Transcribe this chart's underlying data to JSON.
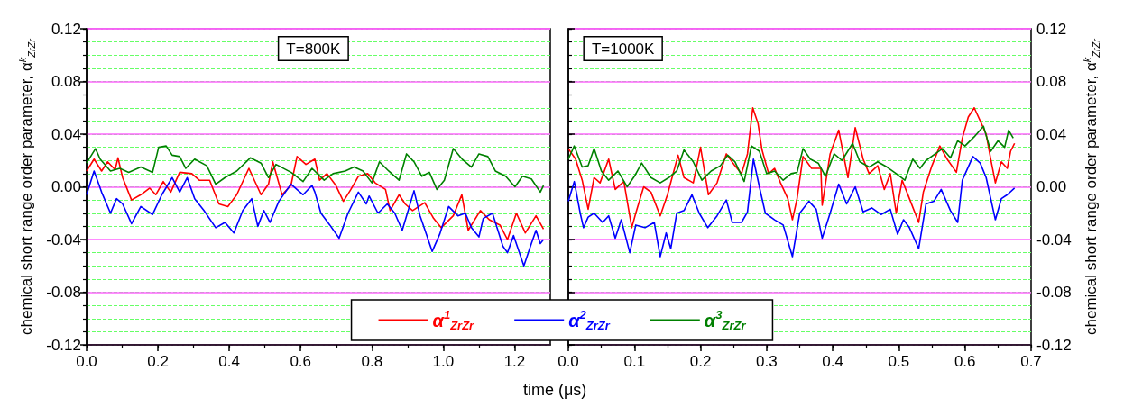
{
  "chart_data": [
    {
      "type": "line",
      "xlabel": "time (μs)",
      "ylabel": "chemical short range order parameter, α$^{k}$$_{ZrZr}$",
      "annotations": [
        "T=800K"
      ],
      "xlim": [
        0,
        1.3
      ],
      "xticks": [
        {
          "value": 0,
          "label": "0.0"
        },
        {
          "value": 0.1,
          "label": null
        },
        {
          "value": 0.2,
          "label": "0.2"
        },
        {
          "value": 0.3,
          "label": null
        },
        {
          "value": 0.4,
          "label": "0.4"
        },
        {
          "value": 0.5,
          "label": null
        },
        {
          "value": 0.6,
          "label": "0.6"
        },
        {
          "value": 0.7,
          "label": null
        },
        {
          "value": 0.8,
          "label": "0.8"
        },
        {
          "value": 0.9,
          "label": null
        },
        {
          "value": 1.0,
          "label": "1.0"
        },
        {
          "value": 1.1,
          "label": null
        },
        {
          "value": 1.2,
          "label": "1.2"
        }
      ],
      "ylim": [
        -0.12,
        0.12
      ],
      "yticks": [
        {
          "value": -0.12,
          "label": "-0.12"
        },
        {
          "value": -0.11,
          "label": null
        },
        {
          "value": -0.1,
          "label": null
        },
        {
          "value": -0.09,
          "label": null
        },
        {
          "value": -0.08,
          "label": "-0.08"
        },
        {
          "value": -0.07,
          "label": null
        },
        {
          "value": -0.06,
          "label": null
        },
        {
          "value": -0.05,
          "label": null
        },
        {
          "value": -0.04,
          "label": "-0.04"
        },
        {
          "value": -0.03,
          "label": null
        },
        {
          "value": -0.02,
          "label": null
        },
        {
          "value": -0.01,
          "label": null
        },
        {
          "value": 0,
          "label": "0.00"
        },
        {
          "value": 0.01,
          "label": null
        },
        {
          "value": 0.02,
          "label": null
        },
        {
          "value": 0.03,
          "label": null
        },
        {
          "value": 0.04,
          "label": "0.04"
        },
        {
          "value": 0.05,
          "label": null
        },
        {
          "value": 0.06,
          "label": null
        },
        {
          "value": 0.07,
          "label": null
        },
        {
          "value": 0.08,
          "label": "0.08"
        },
        {
          "value": 0.09,
          "label": null
        },
        {
          "value": 0.1,
          "label": null
        },
        {
          "value": 0.11,
          "label": null
        },
        {
          "value": 0.12,
          "label": "0.12"
        }
      ],
      "grid": "y",
      "legend": "bottom",
      "marker": "none",
      "series": [
        {
          "name": "α$^{1}$$_{ZrZr}$",
          "color": "#ff0000",
          "x": [
            0,
            0.021,
            0.042,
            0.059,
            0.08,
            0.088,
            0.101,
            0.126,
            0.152,
            0.177,
            0.194,
            0.215,
            0.236,
            0.261,
            0.295,
            0.316,
            0.345,
            0.371,
            0.396,
            0.421,
            0.455,
            0.489,
            0.51,
            0.522,
            0.548,
            0.573,
            0.59,
            0.615,
            0.64,
            0.653,
            0.674,
            0.699,
            0.72,
            0.741,
            0.762,
            0.788,
            0.809,
            0.838,
            0.851,
            0.876,
            0.893,
            0.914,
            0.948,
            0.973,
            0.994,
            1.028,
            1.052,
            1.07,
            1.104,
            1.129,
            1.159,
            1.18,
            1.205,
            1.23,
            1.26,
            1.281
          ],
          "values": [
            0.012,
            0.021,
            0.012,
            0.019,
            0.013,
            0.022,
            0.007,
            -0.01,
            -0.006,
            -0.001,
            -0.006,
            0.004,
            -0.004,
            0.011,
            0.01,
            0.005,
            0.005,
            -0.013,
            -0.015,
            -0.006,
            0.014,
            -0.006,
            0.002,
            0.019,
            -0.006,
            0.001,
            0.023,
            0.017,
            0.021,
            0.005,
            0.01,
            0.001,
            -0.011,
            -0.002,
            0.008,
            0.01,
            0.003,
            -0.002,
            -0.018,
            -0.006,
            -0.013,
            -0.018,
            -0.012,
            -0.024,
            -0.031,
            -0.022,
            -0.006,
            -0.033,
            -0.018,
            -0.025,
            -0.029,
            -0.04,
            -0.02,
            -0.035,
            -0.022,
            -0.032
          ]
        },
        {
          "name": "α$^{2}$$_{ZrZr}$",
          "color": "#0000ff",
          "x": [
            0,
            0.021,
            0.042,
            0.067,
            0.084,
            0.101,
            0.126,
            0.152,
            0.185,
            0.211,
            0.24,
            0.261,
            0.282,
            0.303,
            0.329,
            0.362,
            0.388,
            0.413,
            0.438,
            0.463,
            0.48,
            0.497,
            0.514,
            0.539,
            0.573,
            0.607,
            0.632,
            0.64,
            0.657,
            0.682,
            0.708,
            0.733,
            0.762,
            0.784,
            0.792,
            0.817,
            0.843,
            0.864,
            0.885,
            0.918,
            0.935,
            0.969,
            0.99,
            1.015,
            1.041,
            1.062,
            1.079,
            1.1,
            1.112,
            1.138,
            1.167,
            1.18,
            1.197,
            1.226,
            1.247,
            1.26,
            1.272,
            1.281
          ],
          "values": [
            -0.006,
            0.012,
            -0.004,
            -0.02,
            -0.009,
            -0.013,
            -0.028,
            -0.015,
            -0.021,
            -0.006,
            0.007,
            -0.004,
            0.007,
            -0.009,
            -0.018,
            -0.031,
            -0.027,
            -0.035,
            -0.018,
            -0.009,
            -0.03,
            -0.018,
            -0.027,
            -0.011,
            0.002,
            -0.006,
            0.001,
            -0.004,
            -0.02,
            -0.029,
            -0.039,
            -0.02,
            -0.004,
            -0.013,
            -0.007,
            -0.02,
            -0.013,
            -0.02,
            -0.033,
            -0.003,
            -0.022,
            -0.049,
            -0.036,
            -0.015,
            -0.022,
            -0.02,
            -0.031,
            -0.038,
            -0.024,
            -0.02,
            -0.045,
            -0.05,
            -0.037,
            -0.06,
            -0.043,
            -0.033,
            -0.043,
            -0.04
          ]
        },
        {
          "name": "α$^{3}$$_{ZrZr}$",
          "color": "#008000",
          "x": [
            0,
            0.025,
            0.038,
            0.067,
            0.093,
            0.118,
            0.152,
            0.185,
            0.202,
            0.223,
            0.24,
            0.261,
            0.278,
            0.303,
            0.337,
            0.362,
            0.388,
            0.421,
            0.459,
            0.489,
            0.51,
            0.531,
            0.573,
            0.607,
            0.632,
            0.666,
            0.691,
            0.725,
            0.75,
            0.775,
            0.8,
            0.821,
            0.847,
            0.876,
            0.897,
            0.918,
            0.94,
            0.961,
            0.982,
            1.003,
            1.028,
            1.053,
            1.079,
            1.1,
            1.125,
            1.146,
            1.175,
            1.201,
            1.222,
            1.247,
            1.272,
            1.281
          ],
          "values": [
            0.018,
            0.029,
            0.021,
            0.012,
            0.014,
            0.011,
            0.015,
            0.011,
            0.03,
            0.031,
            0.024,
            0.023,
            0.014,
            0.021,
            0.016,
            0.002,
            0.007,
            0.012,
            0.022,
            0.018,
            0.007,
            0.017,
            0.011,
            0.004,
            0.014,
            0.005,
            0.01,
            0.012,
            0.015,
            0.012,
            0.003,
            0.019,
            0.012,
            0.005,
            0.025,
            0.019,
            0.008,
            0.011,
            -0.002,
            0.005,
            0.029,
            0.021,
            0.015,
            0.025,
            0.023,
            0.012,
            0.008,
            0,
            0.008,
            0.006,
            -0.004,
            0.001
          ]
        }
      ]
    },
    {
      "type": "line",
      "ylabel": "chemical short range order parameter, α$^{k}$$_{ZrZr}$",
      "annotations": [
        "T=1000K"
      ],
      "xlim": [
        0,
        0.7
      ],
      "xticks": [
        {
          "value": 0,
          "label": "0.0"
        },
        {
          "value": 0.05,
          "label": null
        },
        {
          "value": 0.1,
          "label": "0.1"
        },
        {
          "value": 0.15,
          "label": null
        },
        {
          "value": 0.2,
          "label": "0.2"
        },
        {
          "value": 0.25,
          "label": null
        },
        {
          "value": 0.3,
          "label": "0.3"
        },
        {
          "value": 0.35,
          "label": null
        },
        {
          "value": 0.4,
          "label": "0.4"
        },
        {
          "value": 0.45,
          "label": null
        },
        {
          "value": 0.5,
          "label": "0.5"
        },
        {
          "value": 0.55,
          "label": null
        },
        {
          "value": 0.6,
          "label": "0.6"
        },
        {
          "value": 0.65,
          "label": null
        },
        {
          "value": 0.7,
          "label": "0.7"
        }
      ],
      "ylim": [
        -0.12,
        0.12
      ],
      "yticks": [
        {
          "value": -0.12,
          "label": "-0.12"
        },
        {
          "value": -0.11,
          "label": null
        },
        {
          "value": -0.1,
          "label": null
        },
        {
          "value": -0.09,
          "label": null
        },
        {
          "value": -0.08,
          "label": "-0.08"
        },
        {
          "value": -0.07,
          "label": null
        },
        {
          "value": -0.06,
          "label": null
        },
        {
          "value": -0.05,
          "label": null
        },
        {
          "value": -0.04,
          "label": "-0.04"
        },
        {
          "value": -0.03,
          "label": null
        },
        {
          "value": -0.02,
          "label": null
        },
        {
          "value": -0.01,
          "label": null
        },
        {
          "value": 0,
          "label": "0.00"
        },
        {
          "value": 0.01,
          "label": null
        },
        {
          "value": 0.02,
          "label": null
        },
        {
          "value": 0.03,
          "label": null
        },
        {
          "value": 0.04,
          "label": "0.04"
        },
        {
          "value": 0.05,
          "label": null
        },
        {
          "value": 0.06,
          "label": null
        },
        {
          "value": 0.07,
          "label": null
        },
        {
          "value": 0.08,
          "label": "0.08"
        },
        {
          "value": 0.09,
          "label": null
        },
        {
          "value": 0.1,
          "label": null
        },
        {
          "value": 0.11,
          "label": null
        },
        {
          "value": 0.12,
          "label": "0.12"
        }
      ],
      "grid": "y",
      "marker": "none",
      "series": [
        {
          "color": "#ff0000",
          "x": [
            0,
            0.011,
            0.021,
            0.03,
            0.039,
            0.048,
            0.061,
            0.071,
            0.084,
            0.096,
            0.102,
            0.114,
            0.125,
            0.139,
            0.15,
            0.166,
            0.175,
            0.189,
            0.2,
            0.212,
            0.225,
            0.239,
            0.252,
            0.262,
            0.271,
            0.279,
            0.287,
            0.293,
            0.303,
            0.312,
            0.321,
            0.332,
            0.339,
            0.346,
            0.355,
            0.368,
            0.382,
            0.384,
            0.396,
            0.409,
            0.423,
            0.434,
            0.446,
            0.455,
            0.468,
            0.478,
            0.487,
            0.496,
            0.505,
            0.516,
            0.53,
            0.537,
            0.55,
            0.562,
            0.573,
            0.587,
            0.596,
            0.605,
            0.614,
            0.625,
            0.632,
            0.639,
            0.646,
            0.655,
            0.664,
            0.669,
            0.675
          ],
          "values": [
            0.029,
            0.021,
            0.005,
            -0.017,
            0.007,
            0.003,
            0.021,
            -0.002,
            0.004,
            -0.031,
            -0.02,
            0,
            -0.004,
            -0.022,
            -0.006,
            0.024,
            0.007,
            0.003,
            0.03,
            -0.006,
            0.003,
            0.025,
            0.016,
            0.01,
            0.025,
            0.06,
            0.048,
            0.028,
            0.01,
            0.014,
            0.003,
            -0.009,
            -0.025,
            -0.009,
            0.023,
            0.014,
            0.014,
            -0.014,
            0.025,
            0.043,
            0.007,
            0.045,
            0.021,
            0.01,
            0.016,
            -0.002,
            0.01,
            -0.02,
            0.005,
            -0.009,
            -0.027,
            -0.004,
            0.016,
            0.031,
            0.021,
            0.011,
            0.037,
            0.053,
            0.06,
            0.048,
            0.04,
            0.021,
            0.003,
            0.019,
            0.014,
            0.027,
            0.033
          ]
        },
        {
          "color": "#0000ff",
          "x": [
            0,
            0.009,
            0.018,
            0.023,
            0.03,
            0.039,
            0.052,
            0.061,
            0.071,
            0.08,
            0.093,
            0.102,
            0.116,
            0.13,
            0.139,
            0.148,
            0.155,
            0.164,
            0.175,
            0.187,
            0.198,
            0.211,
            0.225,
            0.239,
            0.248,
            0.262,
            0.271,
            0.28,
            0.289,
            0.298,
            0.312,
            0.325,
            0.339,
            0.341,
            0.35,
            0.364,
            0.375,
            0.384,
            0.396,
            0.409,
            0.421,
            0.434,
            0.446,
            0.459,
            0.473,
            0.487,
            0.498,
            0.507,
            0.516,
            0.53,
            0.541,
            0.553,
            0.564,
            0.578,
            0.589,
            0.596,
            0.612,
            0.623,
            0.632,
            0.646,
            0.655,
            0.664,
            0.675
          ],
          "values": [
            -0.011,
            0.004,
            -0.02,
            -0.031,
            -0.023,
            -0.02,
            -0.027,
            -0.022,
            -0.039,
            -0.025,
            -0.05,
            -0.029,
            -0.031,
            -0.027,
            -0.053,
            -0.035,
            -0.047,
            -0.02,
            -0.018,
            -0.006,
            -0.02,
            -0.031,
            -0.022,
            -0.01,
            -0.027,
            -0.027,
            -0.019,
            0.021,
            0,
            -0.02,
            -0.025,
            -0.029,
            -0.053,
            -0.047,
            -0.02,
            -0.011,
            -0.017,
            -0.039,
            -0.02,
            0.002,
            -0.013,
            0,
            -0.019,
            -0.016,
            -0.021,
            -0.017,
            -0.036,
            -0.025,
            -0.031,
            -0.047,
            -0.013,
            -0.011,
            -0.002,
            -0.018,
            -0.027,
            0.005,
            0.023,
            0.018,
            0.007,
            -0.025,
            -0.009,
            -0.006,
            -0.001
          ]
        },
        {
          "color": "#008000",
          "x": [
            0,
            0.009,
            0.021,
            0.03,
            0.039,
            0.05,
            0.061,
            0.075,
            0.089,
            0.1,
            0.111,
            0.125,
            0.139,
            0.152,
            0.164,
            0.175,
            0.189,
            0.202,
            0.216,
            0.23,
            0.241,
            0.252,
            0.266,
            0.277,
            0.289,
            0.3,
            0.312,
            0.325,
            0.337,
            0.346,
            0.355,
            0.366,
            0.378,
            0.389,
            0.402,
            0.414,
            0.43,
            0.441,
            0.455,
            0.468,
            0.482,
            0.496,
            0.509,
            0.521,
            0.532,
            0.541,
            0.555,
            0.566,
            0.578,
            0.589,
            0.6,
            0.614,
            0.628,
            0.639,
            0.65,
            0.66,
            0.666,
            0.673
          ],
          "values": [
            0.021,
            0.031,
            0.015,
            0.016,
            0.029,
            0.012,
            0.005,
            0.012,
            0,
            0.008,
            0.018,
            0.007,
            0.003,
            0.007,
            0.012,
            0.028,
            0.019,
            0.005,
            0.012,
            0.016,
            0.024,
            0.019,
            0.004,
            0.031,
            0.027,
            0.01,
            0.012,
            0.005,
            0.01,
            0.011,
            0.029,
            0.021,
            0.018,
            0.008,
            0.025,
            0.02,
            0.033,
            0.019,
            0.015,
            0.019,
            0.015,
            0.01,
            0.005,
            0.021,
            0.014,
            0.02,
            0.025,
            0.029,
            0.022,
            0.035,
            0.031,
            0.038,
            0.046,
            0.027,
            0.035,
            0.03,
            0.043,
            0.037
          ]
        }
      ]
    }
  ]
}
